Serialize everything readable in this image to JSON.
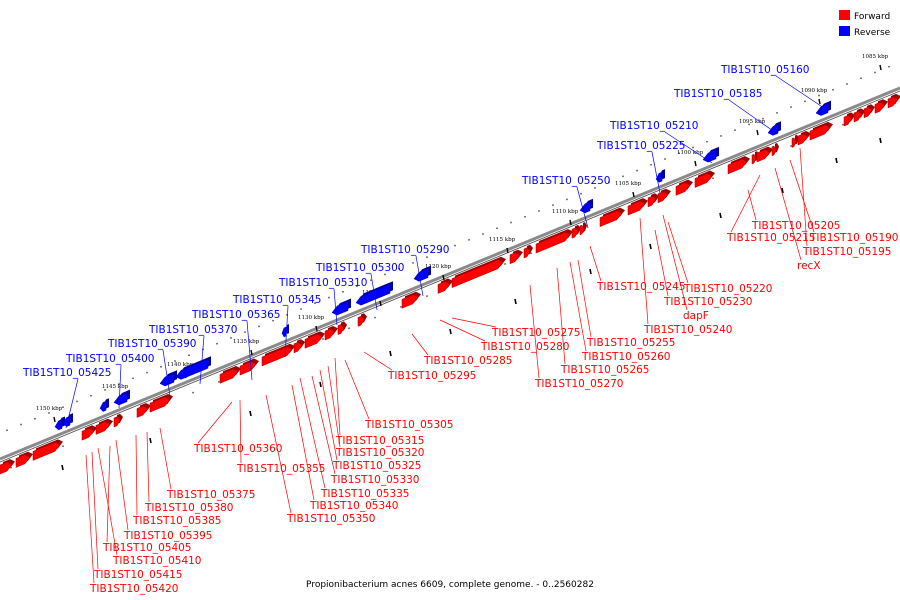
{
  "caption": "Propionibacterium acnes 6609, complete genome. - 0..2560282",
  "legend": [
    {
      "label": "Forward",
      "color": "#ff0000"
    },
    {
      "label": "Reverse",
      "color": "#0000ff"
    }
  ],
  "colors": {
    "forward": "#ff0000",
    "reverse": "#0000ff",
    "backbone": "#888888"
  },
  "ticks": [
    "1085 kbp",
    "1090 kbp",
    "1095 kbp",
    "1100 kbp",
    "1105 kbp",
    "1110 kbp",
    "1115 kbp",
    "1120 kbp",
    "1125 kbp",
    "1130 kbp",
    "1135 kbp",
    "1140 kbp",
    "1145 kbp",
    "1150 kbp"
  ],
  "reverse_labels": [
    "TIB1ST10_05160",
    "TIB1ST10_05185",
    "TIB1ST10_05210",
    "TIB1ST10_05225",
    "TIB1ST10_05250",
    "TIB1ST10_05290",
    "TIB1ST10_05300",
    "TIB1ST10_05310",
    "TIB1ST10_05345",
    "TIB1ST10_05365",
    "TIB1ST10_05370",
    "TIB1ST10_05390",
    "TIB1ST10_05400",
    "TIB1ST10_05425"
  ],
  "forward_labels": [
    "TIB1ST10_05205",
    "TIB1ST10_05215",
    "TIB1ST10_05190",
    "TIB1ST10_05195",
    "recX",
    "TIB1ST10_05220",
    "TIB1ST10_05245",
    "TIB1ST10_05230",
    "dapF",
    "TIB1ST10_05240",
    "TIB1ST10_05255",
    "TIB1ST10_05260",
    "TIB1ST10_05275",
    "TIB1ST10_05280",
    "TIB1ST10_05265",
    "TIB1ST10_05270",
    "TIB1ST10_05285",
    "TIB1ST10_05295",
    "TIB1ST10_05305",
    "TIB1ST10_05315",
    "TIB1ST10_05320",
    "TIB1ST10_05325",
    "TIB1ST10_05330",
    "TIB1ST10_05335",
    "TIB1ST10_05340",
    "TIB1ST10_05350",
    "TIB1ST10_05360",
    "TIB1ST10_05355",
    "TIB1ST10_05375",
    "TIB1ST10_05380",
    "TIB1ST10_05385",
    "TIB1ST10_05395",
    "TIB1ST10_05405",
    "TIB1ST10_05410",
    "TIB1ST10_05415",
    "TIB1ST10_05420"
  ]
}
